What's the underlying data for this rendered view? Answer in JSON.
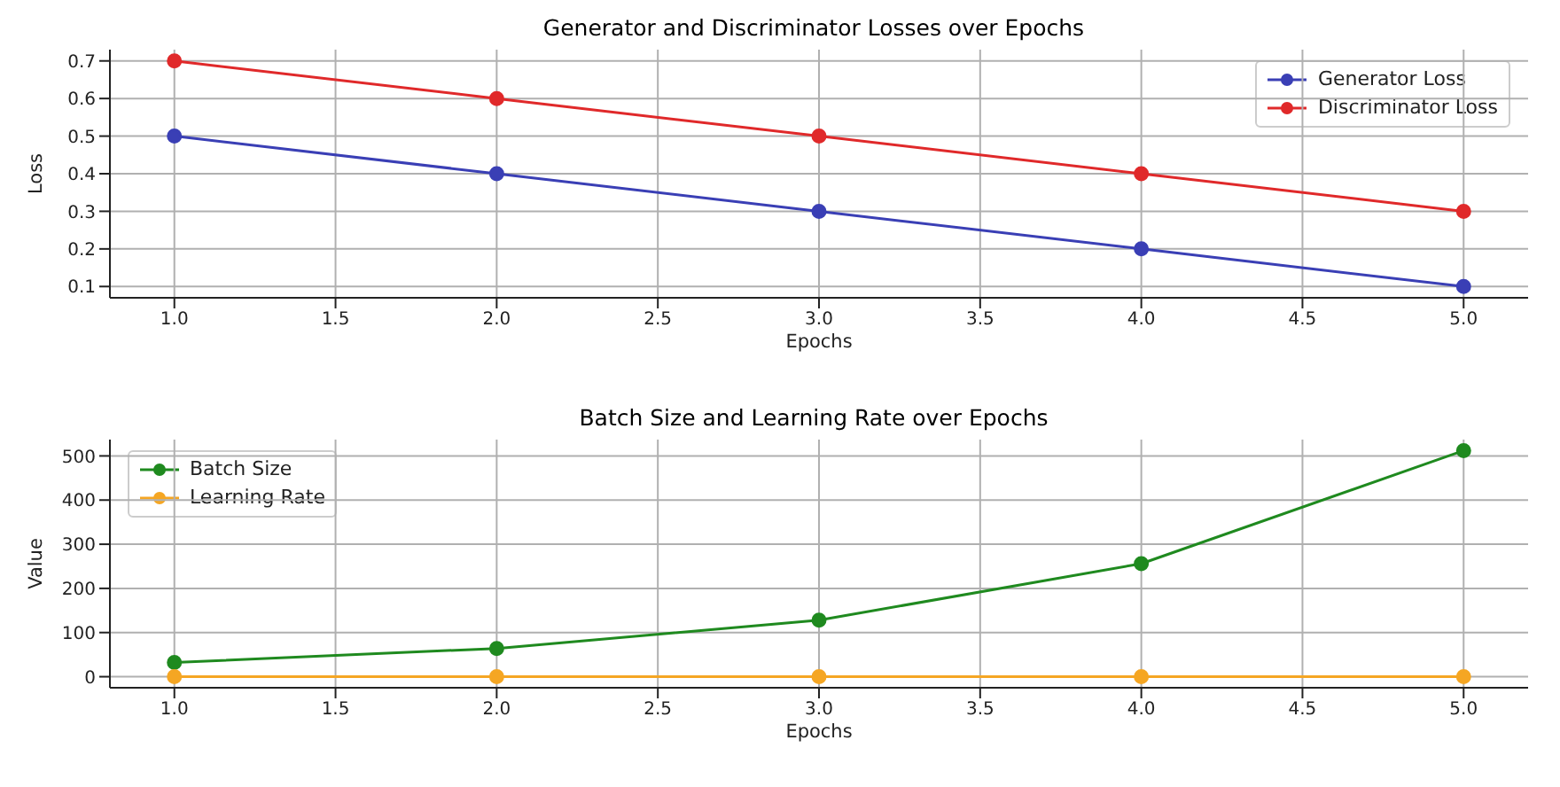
{
  "chart_data": [
    {
      "type": "line",
      "title": "Generator and Discriminator Losses over Epochs",
      "xlabel": "Epochs",
      "ylabel": "Loss",
      "x": [
        1,
        2,
        3,
        4,
        5
      ],
      "series": [
        {
          "name": "Generator Loss",
          "color": "#3a3fb5",
          "values": [
            0.5,
            0.4,
            0.3,
            0.2,
            0.1
          ]
        },
        {
          "name": "Discriminator Loss",
          "color": "#e0292a",
          "values": [
            0.7,
            0.6,
            0.5,
            0.4,
            0.3
          ]
        }
      ],
      "xlim": [
        0.8,
        5.2
      ],
      "xticks": [
        {
          "value": 1,
          "label": "1.0"
        },
        {
          "value": 1.5,
          "label": "1.5"
        },
        {
          "value": 2,
          "label": "2.0"
        },
        {
          "value": 2.5,
          "label": "2.5"
        },
        {
          "value": 3,
          "label": "3.0"
        },
        {
          "value": 3.5,
          "label": "3.5"
        },
        {
          "value": 4,
          "label": "4.0"
        },
        {
          "value": 4.5,
          "label": "4.5"
        },
        {
          "value": 5,
          "label": "5.0"
        }
      ],
      "ylim": [
        0.07,
        0.73
      ],
      "yticks": [
        0.1,
        0.2,
        0.3,
        0.4,
        0.5,
        0.6,
        0.7
      ],
      "grid": true,
      "legend": "top right",
      "marker": "circle"
    },
    {
      "type": "line",
      "title": "Batch Size and Learning Rate over Epochs",
      "xlabel": "Epochs",
      "ylabel": "Value",
      "x": [
        1,
        2,
        3,
        4,
        5
      ],
      "series": [
        {
          "name": "Batch Size",
          "color": "#1f8a1f",
          "values": [
            32,
            64,
            128,
            256,
            512
          ]
        },
        {
          "name": "Learning Rate",
          "color": "#f5a623",
          "values": [
            0,
            0,
            0,
            0,
            0
          ]
        }
      ],
      "xlim": [
        0.8,
        5.2
      ],
      "xticks": [
        {
          "value": 1,
          "label": "1.0"
        },
        {
          "value": 1.5,
          "label": "1.5"
        },
        {
          "value": 2,
          "label": "2.0"
        },
        {
          "value": 2.5,
          "label": "2.5"
        },
        {
          "value": 3,
          "label": "3.0"
        },
        {
          "value": 3.5,
          "label": "3.5"
        },
        {
          "value": 4,
          "label": "4.0"
        },
        {
          "value": 4.5,
          "label": "4.5"
        },
        {
          "value": 5,
          "label": "5.0"
        }
      ],
      "ylim": [
        -25,
        537
      ],
      "yticks": [
        0,
        100,
        200,
        300,
        400,
        500
      ],
      "grid": true,
      "legend": "top left",
      "marker": "circle"
    }
  ]
}
